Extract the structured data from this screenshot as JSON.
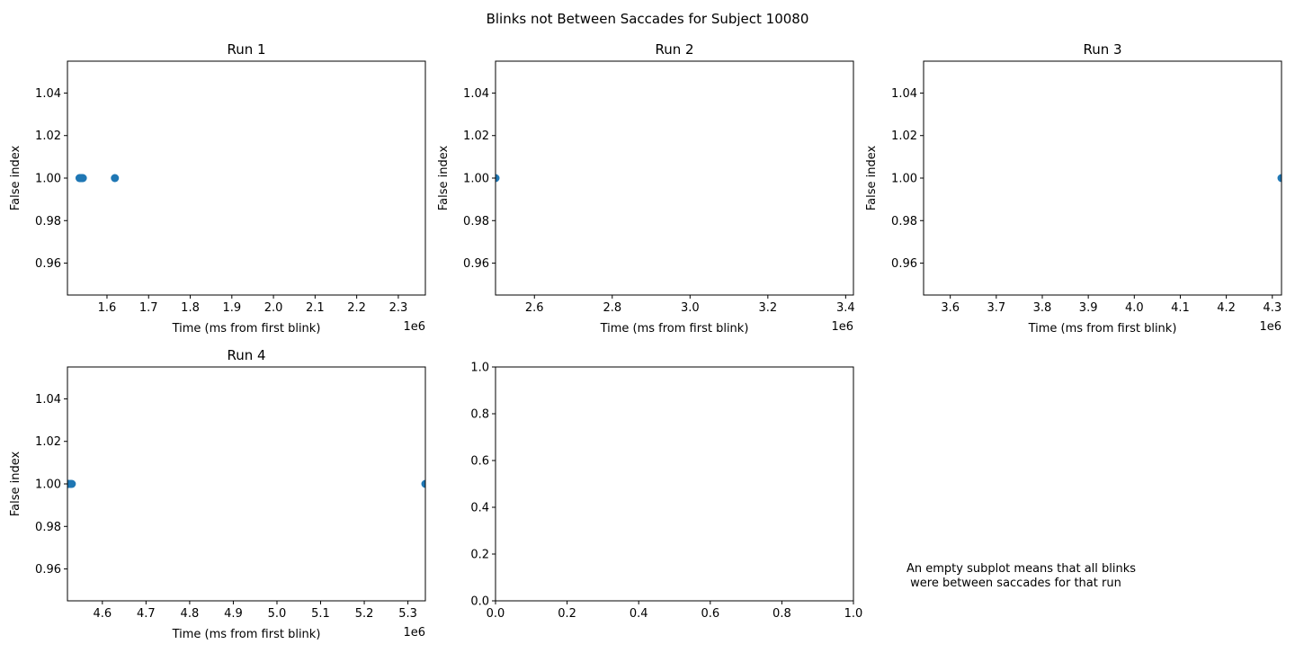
{
  "figure": {
    "suptitle": "Blinks not Between Saccades for Subject 10080",
    "footnote": "An empty subplot means that all blinks\n were between saccades for that run"
  },
  "chart_data": [
    {
      "type": "scatter",
      "title": "Run 1",
      "xlabel": "Time (ms from first blink)",
      "ylabel": "False index",
      "x_offset_label": "1e6",
      "xlim": [
        1.505,
        2.365
      ],
      "ylim": [
        0.945,
        1.055
      ],
      "xticks": [
        1.6,
        1.7,
        1.8,
        1.9,
        2.0,
        2.1,
        2.2,
        2.3
      ],
      "yticks": [
        0.96,
        0.98,
        1.0,
        1.02,
        1.04
      ],
      "points": [
        {
          "x": 1.534,
          "y": 1.0
        },
        {
          "x": 1.536,
          "y": 1.0
        },
        {
          "x": 1.538,
          "y": 1.0
        },
        {
          "x": 1.54,
          "y": 1.0
        },
        {
          "x": 1.542,
          "y": 1.0
        },
        {
          "x": 1.619,
          "y": 1.0
        }
      ],
      "color": "#1f77b4"
    },
    {
      "type": "scatter",
      "title": "Run 2",
      "xlabel": "Time (ms from first blink)",
      "ylabel": "False index",
      "x_offset_label": "1e6",
      "xlim": [
        2.5,
        3.42
      ],
      "ylim": [
        0.945,
        1.055
      ],
      "xticks": [
        2.6,
        2.8,
        3.0,
        3.2,
        3.4
      ],
      "yticks": [
        0.96,
        0.98,
        1.0,
        1.02,
        1.04
      ],
      "points": [
        {
          "x": 2.5,
          "y": 1.0
        }
      ],
      "color": "#1f77b4"
    },
    {
      "type": "scatter",
      "title": "Run 3",
      "xlabel": "Time (ms from first blink)",
      "ylabel": "False index",
      "x_offset_label": "1e6",
      "xlim": [
        3.542,
        4.32
      ],
      "ylim": [
        0.945,
        1.055
      ],
      "xticks": [
        3.6,
        3.7,
        3.8,
        3.9,
        4.0,
        4.1,
        4.2,
        4.3
      ],
      "yticks": [
        0.96,
        0.98,
        1.0,
        1.02,
        1.04
      ],
      "points": [
        {
          "x": 4.32,
          "y": 1.0
        }
      ],
      "color": "#1f77b4"
    },
    {
      "type": "scatter",
      "title": "Run 4",
      "xlabel": "Time (ms from first blink)",
      "ylabel": "False index",
      "x_offset_label": "1e6",
      "xlim": [
        4.52,
        5.34
      ],
      "ylim": [
        0.945,
        1.055
      ],
      "xticks": [
        4.6,
        4.7,
        4.8,
        4.9,
        5.0,
        5.1,
        5.2,
        5.3
      ],
      "yticks": [
        0.96,
        0.98,
        1.0,
        1.02,
        1.04
      ],
      "points": [
        {
          "x": 4.521,
          "y": 1.0
        },
        {
          "x": 4.524,
          "y": 1.0
        },
        {
          "x": 4.527,
          "y": 1.0
        },
        {
          "x": 4.53,
          "y": 1.0
        },
        {
          "x": 5.34,
          "y": 1.0
        }
      ],
      "color": "#1f77b4"
    },
    {
      "type": "scatter",
      "title": "",
      "xlabel": "",
      "ylabel": "",
      "x_offset_label": "",
      "xlim": [
        0.0,
        1.0
      ],
      "ylim": [
        0.0,
        1.0
      ],
      "xticks": [
        0.0,
        0.2,
        0.4,
        0.6,
        0.8,
        1.0
      ],
      "yticks": [
        0.0,
        0.2,
        0.4,
        0.6,
        0.8,
        1.0
      ],
      "points": [],
      "color": "#1f77b4"
    }
  ]
}
